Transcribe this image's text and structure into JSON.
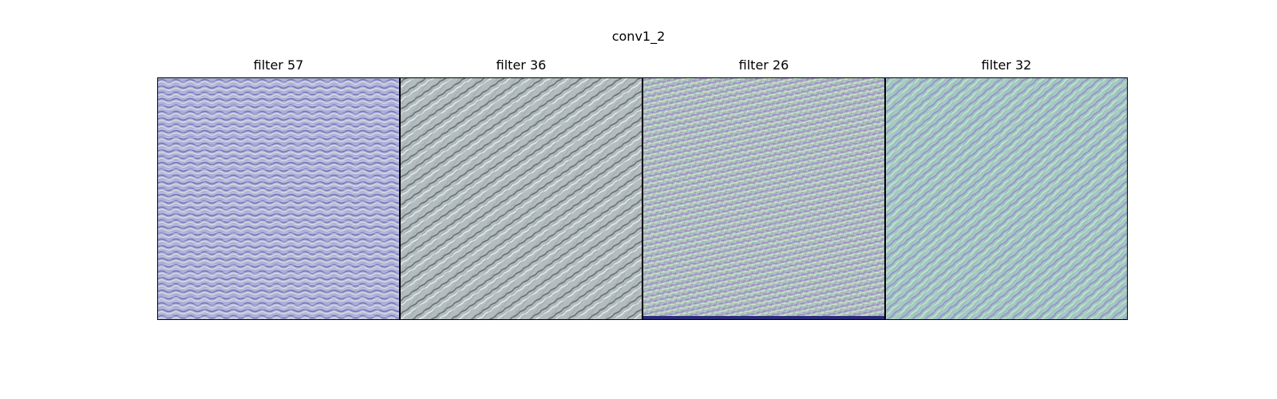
{
  "figure": {
    "title": "conv1_2"
  },
  "panels": [
    {
      "label": "filter 57",
      "texture": "horizontal-waves",
      "colors": [
        "#a7a9d6",
        "#7f83c2",
        "#d9dde0"
      ]
    },
    {
      "label": "filter 36",
      "texture": "diagonal-waves",
      "colors": [
        "#a9b3b7",
        "#6f7b80",
        "#e3e7e8"
      ]
    },
    {
      "label": "filter 26",
      "texture": "speckled-waves",
      "colors": [
        "#9fb9b8",
        "#b39ad4",
        "#d8efc8"
      ]
    },
    {
      "label": "filter 32",
      "texture": "diagonal-streaks",
      "colors": [
        "#9fc5c3",
        "#a48fd0",
        "#bfe6c8"
      ]
    }
  ]
}
